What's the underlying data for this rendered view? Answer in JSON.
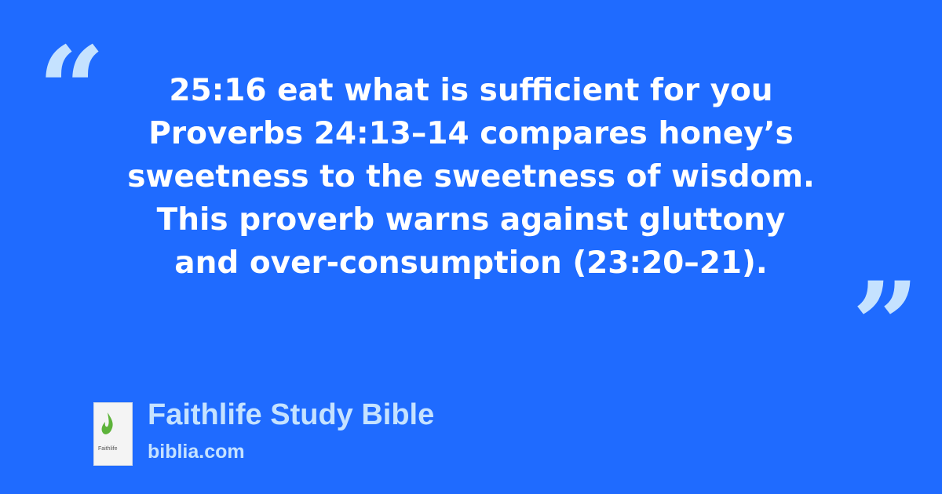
{
  "quote": {
    "open_mark": "“",
    "close_mark": "”",
    "lines": [
      "25:16 eat what is sufficient for you",
      "Proverbs 24:13–14 compares honey’s",
      "sweetness to the sweetness of wisdom.",
      "This proverb warns against gluttony",
      "and over-consumption (23:20–21)."
    ]
  },
  "source": {
    "cover_brand": "Faithlife",
    "title": "Faithlife Study Bible",
    "site": "biblia.com"
  },
  "colors": {
    "background": "#1f6bff",
    "accent": "#c5e2ff",
    "text": "#ffffff"
  }
}
